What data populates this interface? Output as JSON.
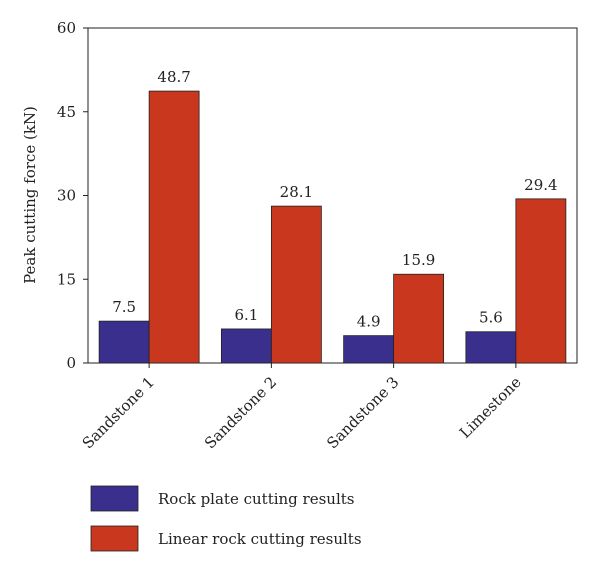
{
  "chart_data": {
    "type": "bar",
    "categories": [
      "Sandstone 1",
      "Sandstone 2",
      "Sandstone 3",
      "Limestone"
    ],
    "series": [
      {
        "name": "Rock plate cutting results",
        "values": [
          7.5,
          6.1,
          4.9,
          5.6
        ],
        "color": "#3a2f8c"
      },
      {
        "name": "Linear rock cutting results",
        "values": [
          48.7,
          28.1,
          15.9,
          29.4
        ],
        "color": "#c8371e"
      }
    ],
    "title": "",
    "xlabel": "",
    "ylabel": "Peak cutting force (kN)",
    "ylim": [
      0,
      60
    ],
    "yticks": [
      0,
      15,
      30,
      45,
      60
    ],
    "grid": false,
    "legend_position": "bottom-center"
  }
}
